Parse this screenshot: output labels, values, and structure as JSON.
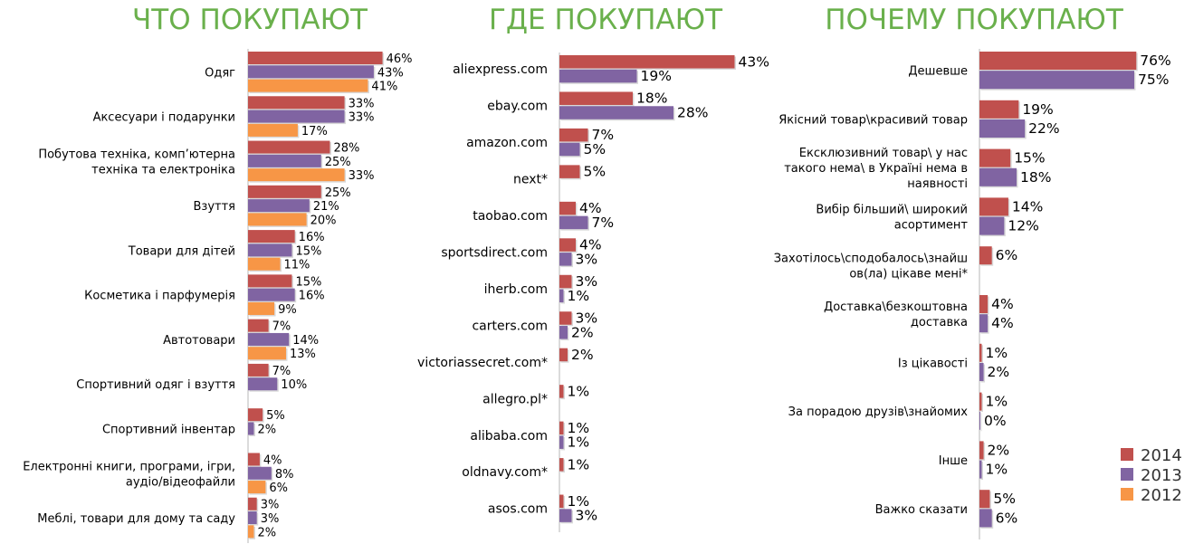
{
  "colors": {
    "2014": "#c0504d",
    "2013": "#8064a2",
    "2012": "#f79646",
    "title": "#6ab04c"
  },
  "legend": [
    {
      "label": "2014",
      "color": "#c0504d"
    },
    {
      "label": "2013",
      "color": "#8064a2"
    },
    {
      "label": "2012",
      "color": "#f79646"
    }
  ],
  "chart_data": [
    {
      "type": "bar",
      "orientation": "horizontal",
      "title": "ЧТО ПОКУПАЮТ",
      "categories": [
        "Одяг",
        "Аксесуари і подарунки",
        "Побутова техніка, комп’ютерна техніка та електроніка",
        "Взуття",
        "Товари для дітей",
        "Косметика і парфумерія",
        "Автотовари",
        "Спортивний одяг і взуття",
        "Спортивний інвентар",
        "Електронні книги, програми, ігри, аудіо/відеофайли",
        "Меблі, товари для дому та саду"
      ],
      "series": [
        {
          "name": "2014",
          "values": [
            46,
            33,
            28,
            25,
            16,
            15,
            7,
            7,
            5,
            4,
            3
          ]
        },
        {
          "name": "2013",
          "values": [
            43,
            33,
            25,
            21,
            15,
            16,
            14,
            10,
            2,
            8,
            3
          ]
        },
        {
          "name": "2012",
          "values": [
            41,
            17,
            33,
            20,
            11,
            9,
            13,
            null,
            null,
            6,
            2
          ]
        }
      ],
      "value_suffix": "%"
    },
    {
      "type": "bar",
      "orientation": "horizontal",
      "title": "ГДЕ ПОКУПАЮТ",
      "categories": [
        "aliexpress.com",
        "ebay.com",
        "amazon.com",
        "next*",
        "taobao.com",
        "sportsdirect.com",
        "iherb.com",
        "carters.com",
        "victoriassecret.com*",
        "allegro.pl*",
        "alibaba.com",
        "oldnavy.com*",
        "asos.com"
      ],
      "series": [
        {
          "name": "2014",
          "values": [
            43,
            18,
            7,
            5,
            4,
            4,
            3,
            3,
            2,
            1,
            1,
            1,
            1
          ]
        },
        {
          "name": "2013",
          "values": [
            19,
            28,
            5,
            null,
            7,
            3,
            1,
            2,
            null,
            null,
            1,
            null,
            3
          ]
        }
      ],
      "value_suffix": "%"
    },
    {
      "type": "bar",
      "orientation": "horizontal",
      "title": "ПОЧЕМУ ПОКУПАЮТ",
      "categories": [
        "Дешевше",
        "Якісний товар\\красивий товар",
        "Ексклюзивний товар\\ у нас такого нема\\ в Україні нема в наявності",
        "Вибір більший\\ широкий асортимент",
        "Захотілось\\сподобалось\\знайшов(ла) цікаве мені*",
        "Доставка\\безкоштовна доставка",
        "Із цікавості",
        "За порадою друзів\\знайомих",
        "Інше",
        "Важко сказати"
      ],
      "series": [
        {
          "name": "2014",
          "values": [
            76,
            19,
            15,
            14,
            6,
            4,
            1,
            1,
            2,
            5
          ]
        },
        {
          "name": "2013",
          "values": [
            75,
            22,
            18,
            12,
            null,
            4,
            2,
            0,
            1,
            6
          ]
        }
      ],
      "value_suffix": "%"
    }
  ]
}
